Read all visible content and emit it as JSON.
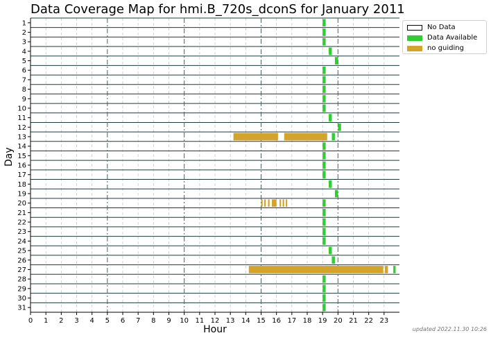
{
  "chart_data": {
    "type": "timeline",
    "title": "Data Coverage Map for hmi.B_720s_dconS for January 2011",
    "xlabel": "Hour",
    "ylabel": "Day",
    "xlim": [
      0,
      24
    ],
    "x_ticks": [
      "0",
      "1",
      "2",
      "3",
      "4",
      "5",
      "6",
      "7",
      "8",
      "9",
      "10",
      "11",
      "12",
      "13",
      "14",
      "15",
      "16",
      "17",
      "18",
      "19",
      "20",
      "21",
      "22",
      "23"
    ],
    "days": [
      "1",
      "2",
      "3",
      "4",
      "5",
      "6",
      "7",
      "8",
      "9",
      "10",
      "11",
      "12",
      "13",
      "14",
      "15",
      "16",
      "17",
      "18",
      "19",
      "20",
      "21",
      "22",
      "23",
      "24",
      "25",
      "26",
      "27",
      "28",
      "29",
      "30",
      "31"
    ],
    "legend_position": "outside-top-right",
    "legend": [
      {
        "key": "no_data",
        "label": "No Data",
        "color": "#ffffff",
        "border": "#000000"
      },
      {
        "key": "data",
        "label": "Data Available",
        "color": "#32cd32"
      },
      {
        "key": "no_guiding",
        "label": "no guiding",
        "color": "#d4a32a"
      }
    ],
    "major_gridlines_hours": [
      5,
      10,
      15,
      20
    ],
    "row_separator_color": "#1c3a3a",
    "segments": [
      {
        "day": 1,
        "start": 19.0,
        "end": 19.2,
        "status": "data"
      },
      {
        "day": 2,
        "start": 19.0,
        "end": 19.2,
        "status": "data"
      },
      {
        "day": 3,
        "start": 19.0,
        "end": 19.2,
        "status": "data"
      },
      {
        "day": 4,
        "start": 19.4,
        "end": 19.6,
        "status": "data"
      },
      {
        "day": 5,
        "start": 19.8,
        "end": 20.0,
        "status": "data"
      },
      {
        "day": 6,
        "start": 19.0,
        "end": 19.2,
        "status": "data"
      },
      {
        "day": 7,
        "start": 19.0,
        "end": 19.2,
        "status": "data"
      },
      {
        "day": 8,
        "start": 19.0,
        "end": 19.2,
        "status": "data"
      },
      {
        "day": 9,
        "start": 19.0,
        "end": 19.2,
        "status": "data"
      },
      {
        "day": 10,
        "start": 19.0,
        "end": 19.2,
        "status": "data"
      },
      {
        "day": 11,
        "start": 19.4,
        "end": 19.6,
        "status": "data"
      },
      {
        "day": 12,
        "start": 20.0,
        "end": 20.2,
        "status": "data"
      },
      {
        "day": 13,
        "start": 13.2,
        "end": 16.1,
        "status": "no_guiding"
      },
      {
        "day": 13,
        "start": 16.5,
        "end": 19.3,
        "status": "no_guiding"
      },
      {
        "day": 13,
        "start": 19.6,
        "end": 19.8,
        "status": "data"
      },
      {
        "day": 14,
        "start": 19.0,
        "end": 19.2,
        "status": "data"
      },
      {
        "day": 15,
        "start": 19.0,
        "end": 19.2,
        "status": "data"
      },
      {
        "day": 16,
        "start": 19.0,
        "end": 19.2,
        "status": "data"
      },
      {
        "day": 17,
        "start": 19.0,
        "end": 19.2,
        "status": "data"
      },
      {
        "day": 18,
        "start": 19.4,
        "end": 19.6,
        "status": "data"
      },
      {
        "day": 19,
        "start": 19.8,
        "end": 20.0,
        "status": "data"
      },
      {
        "day": 20,
        "start": 15.0,
        "end": 15.1,
        "status": "no_guiding"
      },
      {
        "day": 20,
        "start": 15.2,
        "end": 15.3,
        "status": "no_guiding"
      },
      {
        "day": 20,
        "start": 15.45,
        "end": 15.55,
        "status": "no_guiding"
      },
      {
        "day": 20,
        "start": 15.7,
        "end": 16.0,
        "status": "no_guiding"
      },
      {
        "day": 20,
        "start": 16.2,
        "end": 16.3,
        "status": "no_guiding"
      },
      {
        "day": 20,
        "start": 16.4,
        "end": 16.5,
        "status": "no_guiding"
      },
      {
        "day": 20,
        "start": 16.6,
        "end": 16.7,
        "status": "no_guiding"
      },
      {
        "day": 20,
        "start": 19.0,
        "end": 19.2,
        "status": "data"
      },
      {
        "day": 21,
        "start": 19.0,
        "end": 19.2,
        "status": "data"
      },
      {
        "day": 22,
        "start": 19.0,
        "end": 19.2,
        "status": "data"
      },
      {
        "day": 23,
        "start": 19.0,
        "end": 19.2,
        "status": "data"
      },
      {
        "day": 24,
        "start": 19.0,
        "end": 19.2,
        "status": "data"
      },
      {
        "day": 25,
        "start": 19.4,
        "end": 19.6,
        "status": "data"
      },
      {
        "day": 26,
        "start": 19.6,
        "end": 19.8,
        "status": "data"
      },
      {
        "day": 27,
        "start": 14.2,
        "end": 22.95,
        "status": "no_guiding"
      },
      {
        "day": 27,
        "start": 23.05,
        "end": 23.25,
        "status": "no_guiding"
      },
      {
        "day": 27,
        "start": 23.6,
        "end": 23.75,
        "status": "data"
      },
      {
        "day": 28,
        "start": 19.0,
        "end": 19.2,
        "status": "data"
      },
      {
        "day": 29,
        "start": 19.0,
        "end": 19.2,
        "status": "data"
      },
      {
        "day": 30,
        "start": 19.0,
        "end": 19.2,
        "status": "data"
      },
      {
        "day": 31,
        "start": 19.0,
        "end": 19.2,
        "status": "data"
      }
    ]
  },
  "footer": {
    "updated": "updated 2022.11.30 10:26"
  }
}
